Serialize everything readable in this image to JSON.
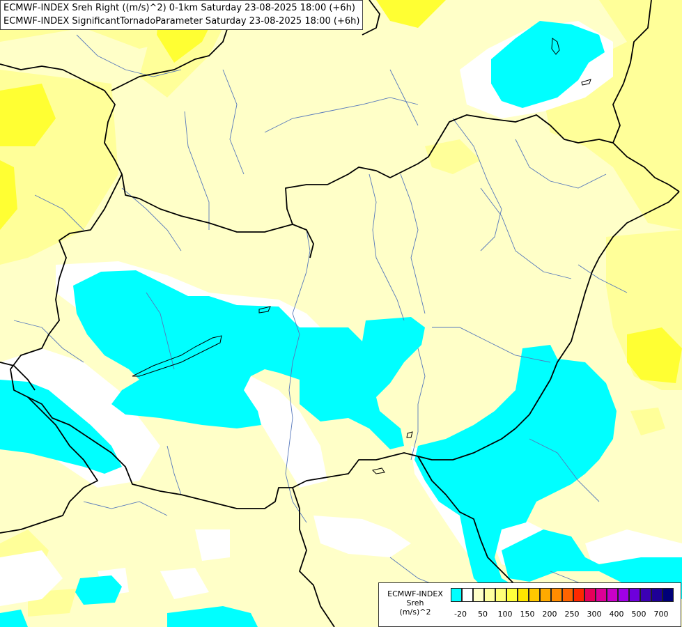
{
  "header": {
    "line1": "ECMWF-INDEX Sreh Right ((m/s)^2) 0-1km Saturday 23-08-2025 18:00 (+6h)",
    "line2": "ECMWF-INDEX SignificantTornadoParameter Saturday 23-08-2025 18:00 (+6h)"
  },
  "legend": {
    "title_line1": "ECMWF-INDEX",
    "title_line2": "Sreh",
    "title_line3": "(m/s)^2",
    "colors": [
      "#00ffff",
      "#ffffff",
      "#ffffc8",
      "#ffffa0",
      "#ffff78",
      "#ffff3c",
      "#ffe600",
      "#ffc800",
      "#ffaa00",
      "#ff8c00",
      "#ff6400",
      "#ff2800",
      "#e6005a",
      "#dc0096",
      "#c800c8",
      "#a000e6",
      "#6e00dc",
      "#3c00b4",
      "#1e0096",
      "#000078"
    ],
    "ticks": [
      "-20",
      "50",
      "100",
      "150",
      "200",
      "250",
      "300",
      "400",
      "500",
      "700"
    ]
  },
  "colors": {
    "cyan": "#00ffff",
    "light_yellow": "#ffffc8",
    "yellow": "#ffff99",
    "bright_yellow": "#ffff00",
    "white": "#ffffff",
    "border": "#000000",
    "river": "#5577bb"
  }
}
